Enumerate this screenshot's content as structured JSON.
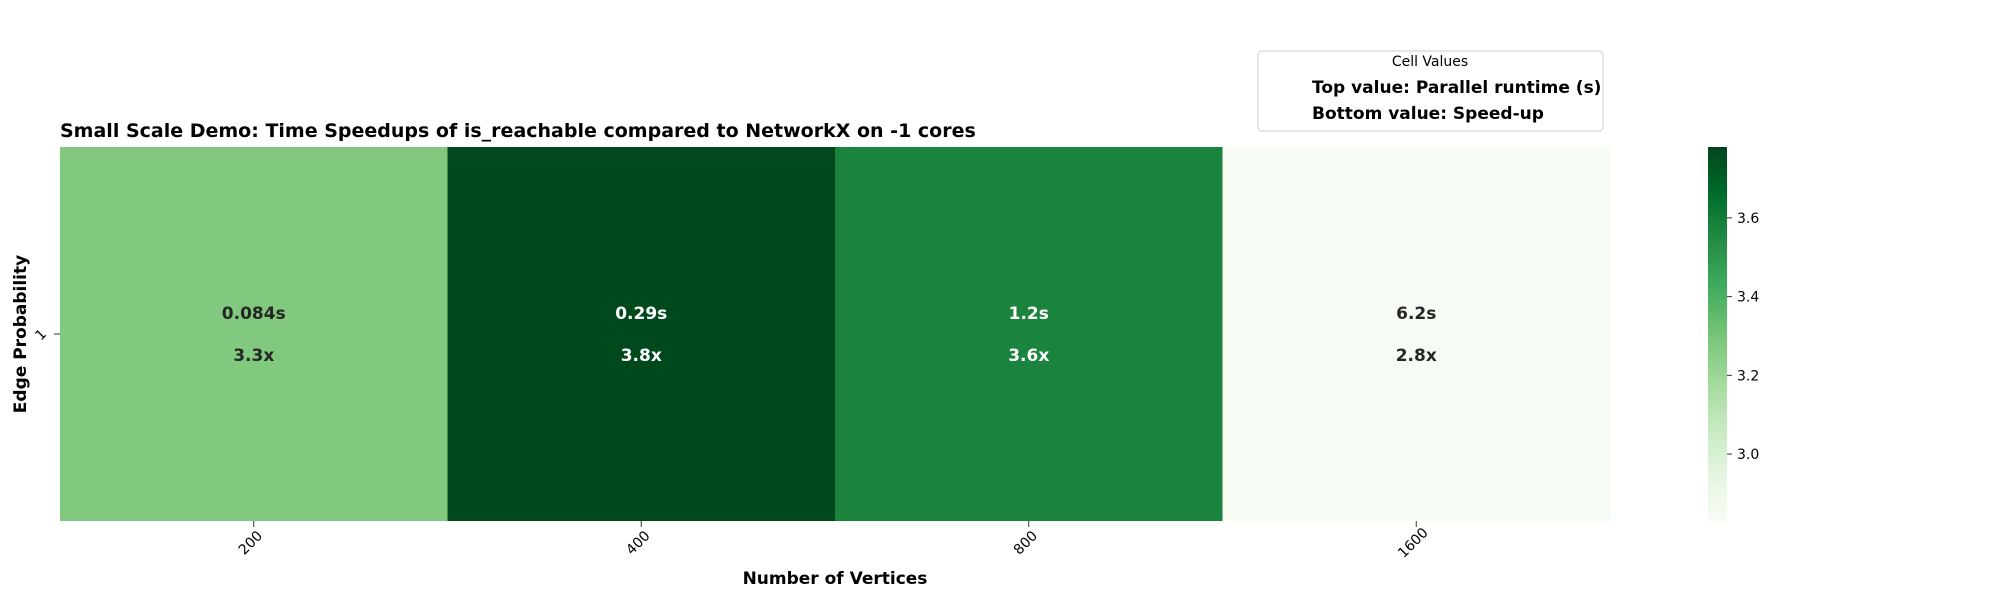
{
  "chart_data": {
    "type": "heatmap",
    "title": "Small Scale Demo: Time Speedups of is_reachable compared to NetworkX on -1 cores",
    "xlabel": "Number of Vertices",
    "ylabel": "Edge Probability",
    "x_categories": [
      "200",
      "400",
      "800",
      "1600"
    ],
    "y_categories": [
      "1"
    ],
    "cells": [
      {
        "x": "200",
        "y": "1",
        "runtime_s": 0.084,
        "runtime_label": "0.084s",
        "speedup": 3.3,
        "speedup_label": "3.3x"
      },
      {
        "x": "400",
        "y": "1",
        "runtime_s": 0.29,
        "runtime_label": "0.29s",
        "speedup": 3.8,
        "speedup_label": "3.8x"
      },
      {
        "x": "800",
        "y": "1",
        "runtime_s": 1.2,
        "runtime_label": "1.2s",
        "speedup": 3.6,
        "speedup_label": "3.6x"
      },
      {
        "x": "1600",
        "y": "1",
        "runtime_s": 6.2,
        "runtime_label": "6.2s",
        "speedup": 2.8,
        "speedup_label": "2.8x"
      }
    ],
    "cell_colors": [
      "#81c97e",
      "#00491d",
      "#1a843f",
      "#f6fcf4"
    ],
    "cell_text_colors": [
      "#262626",
      "#ffffff",
      "#ffffff",
      "#262626"
    ],
    "colorbar": {
      "colormap": "Greens",
      "range": [
        2.83,
        3.78
      ],
      "ticks": [
        "3.0",
        "3.2",
        "3.4",
        "3.6"
      ],
      "tick_values": [
        3.0,
        3.2,
        3.4,
        3.6
      ],
      "gradient_colors": [
        "#f7fcf5",
        "#e5f5e0",
        "#c7e9c0",
        "#a1d99b",
        "#74c476",
        "#41ab5d",
        "#238b45",
        "#006d2c",
        "#00441b"
      ]
    },
    "legend": {
      "title": "Cell Values",
      "entries": [
        "Top value: Parallel runtime (s)",
        "Bottom value: Speed-up"
      ],
      "placement": "top-right"
    }
  }
}
